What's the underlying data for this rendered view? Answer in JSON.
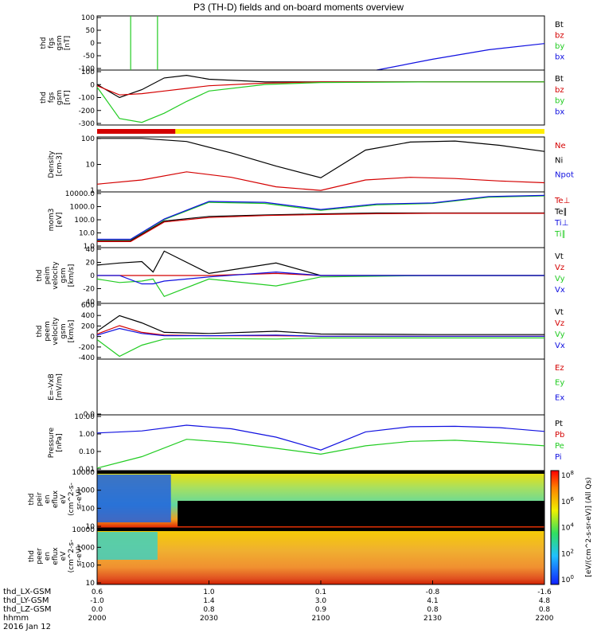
{
  "title": "P3 (TH-D) fields and on-board moments overview",
  "footer": {
    "row_labels": [
      "thd_LX-GSM",
      "thd_LY-GSM",
      "thd_LZ-GSM",
      "hhmm"
    ],
    "date": "2016 Jan 12",
    "columns": [
      {
        "lx": "0.6",
        "ly": "-1.0",
        "lz": "0.0",
        "time": "2000"
      },
      {
        "lx": "1.0",
        "ly": "1.4",
        "lz": "0.8",
        "time": "2030"
      },
      {
        "lx": "0.1",
        "ly": "3.0",
        "lz": "0.9",
        "time": "2100"
      },
      {
        "lx": "-0.8",
        "ly": "4.1",
        "lz": "0.8",
        "time": "2130"
      },
      {
        "lx": "-1.6",
        "ly": "4.8",
        "lz": "0.8",
        "time": "2200"
      }
    ]
  },
  "colorbar_label": "[eV/(cm^2-s-sr-eV)] (All Qs)",
  "colors": {
    "black": "#000000",
    "red": "#d40000",
    "green": "#22cc22",
    "blue": "#1010e0",
    "yellow": "#ffee00"
  },
  "chart_data": [
    {
      "type": "line",
      "panel": "fgs",
      "ylabel": "thd\nfgs\ngsm\n[nT]",
      "ylim": [
        -100,
        100
      ],
      "ticks": [
        "100",
        "50",
        "0",
        "-50",
        "-100"
      ],
      "x_hours": [
        20.0,
        20.25,
        20.5,
        20.75,
        21.0,
        21.25,
        21.5,
        21.75,
        22.0
      ],
      "series": [
        {
          "name": "bx",
          "color": "blue",
          "values": [
            null,
            null,
            null,
            null,
            null,
            -100,
            -60,
            -25,
            -2
          ]
        }
      ],
      "legend": [
        "Bt",
        "bz",
        "by",
        "bx"
      ],
      "legend_colors": [
        "black",
        "red",
        "green",
        "blue"
      ]
    },
    {
      "type": "line",
      "panel": "fgs-detail",
      "ylabel": "thd\nfgs\ngsm\n[nT]",
      "ylim": [
        -330,
        90
      ],
      "ticks": [
        "100",
        "0",
        "-100",
        "-200",
        "-300"
      ],
      "x_hours": [
        20.0,
        20.1,
        20.2,
        20.3,
        20.4,
        20.5,
        20.75,
        21.0,
        21.5,
        22.0
      ],
      "series": [
        {
          "name": "Bt",
          "color": "black",
          "values": [
            -20,
            -120,
            -60,
            30,
            50,
            20,
            0,
            0,
            0,
            0
          ]
        },
        {
          "name": "bz",
          "color": "red",
          "values": [
            -30,
            -100,
            -90,
            -70,
            -50,
            -30,
            -10,
            0,
            0,
            0
          ]
        },
        {
          "name": "by",
          "color": "green",
          "values": [
            -40,
            -280,
            -310,
            -240,
            -150,
            -70,
            -20,
            -5,
            0,
            0
          ]
        }
      ],
      "legend": [
        "Bt",
        "bz",
        "by",
        "bx"
      ],
      "legend_colors": [
        "black",
        "red",
        "green",
        "blue"
      ]
    },
    {
      "type": "line",
      "panel": "density",
      "ylabel": "Density\n[cm-3]",
      "scale": "log",
      "ylim": [
        0.6,
        150
      ],
      "ticks": [
        "100",
        "10",
        "1"
      ],
      "x_hours": [
        20.0,
        20.2,
        20.4,
        20.6,
        20.8,
        21.0,
        21.2,
        21.4,
        21.6,
        21.8,
        22.0
      ],
      "series": [
        {
          "name": "Ni",
          "color": "black",
          "values": [
            130,
            130,
            95,
            30,
            8,
            2.5,
            40,
            90,
            100,
            65,
            35
          ]
        },
        {
          "name": "Ne",
          "color": "red",
          "values": [
            1.3,
            2.0,
            4.5,
            2.6,
            1.0,
            0.7,
            2.0,
            2.6,
            2.3,
            1.8,
            1.5
          ]
        }
      ],
      "legend": [
        "Ne",
        "Ni",
        "Npot"
      ],
      "legend_colors": [
        "red",
        "black",
        "blue"
      ]
    },
    {
      "type": "line",
      "panel": "temperature",
      "ylabel": "mom3\n[eV]",
      "scale": "log",
      "ylim": [
        0.3,
        20000
      ],
      "ticks": [
        "10000.0",
        "1000.0",
        "100.0",
        "10.0",
        "1.0"
      ],
      "x_hours": [
        20.0,
        20.15,
        20.3,
        20.5,
        20.75,
        21.0,
        21.25,
        21.5,
        21.75,
        22.0
      ],
      "series": [
        {
          "name": "Ti∥",
          "color": "green",
          "values": [
            1.5,
            1.5,
            80,
            2500,
            2000,
            500,
            1500,
            2000,
            7000,
            9000
          ]
        },
        {
          "name": "Te∥",
          "color": "black",
          "values": [
            1.2,
            1.2,
            60,
            150,
            200,
            250,
            300,
            300,
            300,
            300
          ]
        },
        {
          "name": "Te⊥",
          "color": "red",
          "values": [
            1.0,
            1.0,
            50,
            120,
            180,
            220,
            260,
            280,
            280,
            280
          ]
        },
        {
          "name": "Ti⊥",
          "color": "blue",
          "values": [
            1.6,
            1.6,
            90,
            3000,
            2500,
            600,
            1800,
            2200,
            8000,
            10000
          ]
        }
      ],
      "legend": [
        "Te⊥",
        "Te∥",
        "Ti⊥",
        "Ti∥"
      ],
      "legend_colors": [
        "red",
        "black",
        "blue",
        "green"
      ]
    },
    {
      "type": "line",
      "panel": "peim-velocity",
      "ylabel": "thd\npeim\nvelocity\ngsm\n[km/s]",
      "ylim": [
        -40,
        40
      ],
      "ticks": [
        "40",
        "20",
        "0",
        "-20",
        "-40"
      ],
      "x_hours": [
        20.0,
        20.1,
        20.2,
        20.25,
        20.3,
        20.5,
        20.8,
        21.0,
        21.5,
        22.0
      ],
      "series": [
        {
          "name": "Vt",
          "color": "black",
          "values": [
            15,
            18,
            20,
            5,
            35,
            3,
            18,
            0,
            0,
            0
          ]
        },
        {
          "name": "Vz",
          "color": "red",
          "values": [
            0,
            0,
            0,
            0,
            0,
            0,
            3,
            0,
            0,
            0
          ]
        },
        {
          "name": "Vy",
          "color": "green",
          "values": [
            -5,
            -10,
            -8,
            -5,
            -30,
            -5,
            -15,
            -2,
            0,
            0
          ]
        },
        {
          "name": "Vx",
          "color": "blue",
          "values": [
            0,
            0,
            -12,
            -12,
            -8,
            -2,
            5,
            0,
            0,
            0
          ]
        }
      ],
      "legend": [
        "Vt",
        "Vz",
        "Vy",
        "Vx"
      ],
      "legend_colors": [
        "black",
        "red",
        "green",
        "blue"
      ]
    },
    {
      "type": "line",
      "panel": "peem-velocity",
      "ylabel": "thd\npeem\nvelocity\ngsm\n[km/s]",
      "ylim": [
        -400,
        600
      ],
      "ticks": [
        "600",
        "400",
        "200",
        "0",
        "-200",
        "-400"
      ],
      "x_hours": [
        20.0,
        20.1,
        20.2,
        20.3,
        20.5,
        20.8,
        21.0,
        21.5,
        22.0
      ],
      "series": [
        {
          "name": "Vt",
          "color": "black",
          "values": [
            100,
            380,
            250,
            80,
            60,
            100,
            50,
            40,
            40
          ]
        },
        {
          "name": "Vz",
          "color": "red",
          "values": [
            50,
            200,
            80,
            30,
            20,
            20,
            10,
            10,
            10
          ]
        },
        {
          "name": "Vy",
          "color": "green",
          "values": [
            -50,
            -350,
            -150,
            -40,
            -30,
            -40,
            -20,
            -20,
            -20
          ]
        },
        {
          "name": "Vx",
          "color": "blue",
          "values": [
            30,
            150,
            60,
            20,
            20,
            30,
            10,
            10,
            10
          ]
        }
      ],
      "legend": [
        "Vt",
        "Vz",
        "Vy",
        "Vx"
      ],
      "legend_colors": [
        "black",
        "red",
        "green",
        "blue"
      ]
    },
    {
      "type": "line",
      "panel": "efield",
      "ylabel": "E=-VxB\n[mV/m]",
      "ylim": [
        0,
        5
      ],
      "ticks": [
        "0.0"
      ],
      "series": [],
      "legend": [
        "Ez",
        "Ey",
        "Ex"
      ],
      "legend_colors": [
        "red",
        "green",
        "blue"
      ]
    },
    {
      "type": "line",
      "panel": "pressure",
      "ylabel": "Pressure\n[nPa]",
      "scale": "log",
      "ylim": [
        0.002,
        20
      ],
      "ticks": [
        "10.00",
        "1.00",
        "0.10",
        "0.01"
      ],
      "x_hours": [
        20.0,
        20.2,
        20.4,
        20.6,
        20.8,
        21.0,
        21.2,
        21.4,
        21.6,
        21.8,
        22.0
      ],
      "series": [
        {
          "name": "Pi",
          "color": "blue",
          "values": [
            1.0,
            1.4,
            3.6,
            2.0,
            0.5,
            0.06,
            1.2,
            2.8,
            3.0,
            2.4,
            1.3
          ]
        },
        {
          "name": "Pe",
          "color": "green",
          "values": [
            0.003,
            0.02,
            0.35,
            0.2,
            0.08,
            0.03,
            0.12,
            0.25,
            0.3,
            0.2,
            0.12
          ]
        }
      ],
      "legend": [
        "Pt",
        "Pb",
        "Pe",
        "Pi"
      ],
      "legend_colors": [
        "black",
        "red",
        "green",
        "blue"
      ]
    },
    {
      "type": "heatmap",
      "panel": "peir-spectrogram",
      "ylabel": "thd\npeir\nen\neflux\neV\n(cm^2-s-\nsr-eV)",
      "scale": "log",
      "ylim": [
        7,
        30000
      ],
      "ticks": [
        "10000",
        "1000",
        "100",
        "10"
      ]
    },
    {
      "type": "heatmap",
      "panel": "peer-spectrogram",
      "ylabel": "thd\npeer\nen\neflux\neV\n(cm^2-s-\nsr-eV)",
      "scale": "log",
      "ylim": [
        5,
        30000
      ],
      "ticks": [
        "10000",
        "1000",
        "100",
        "10"
      ],
      "colorbar_ticks": [
        "10^8",
        "10^6",
        "10^4",
        "10^2",
        "10^0"
      ]
    }
  ]
}
